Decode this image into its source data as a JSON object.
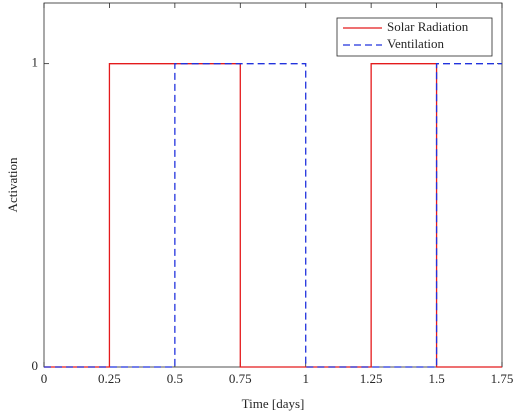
{
  "chart_data": {
    "type": "line",
    "xlabel": "Time [days]",
    "ylabel": "Activation",
    "xlim": [
      0,
      1.75
    ],
    "ylim": [
      0,
      1.2
    ],
    "xticks": [
      0,
      0.25,
      0.5,
      0.75,
      1,
      1.25,
      1.5,
      1.75
    ],
    "yticks": [
      0,
      1
    ],
    "legend": "upper right",
    "series": [
      {
        "name": "Solar Radiation",
        "color": "#e41a1c",
        "dash": "solid",
        "x": [
          0,
          0.25,
          0.25,
          0.75,
          0.75,
          1.25,
          1.25,
          1.5,
          1.5,
          1.75
        ],
        "values": [
          0,
          0,
          1,
          1,
          0,
          0,
          1,
          1,
          0,
          0
        ]
      },
      {
        "name": "Ventilation",
        "color": "#2233dd",
        "dash": "dashed",
        "x": [
          0,
          0.5,
          0.5,
          1,
          1,
          1.5,
          1.5,
          1.75
        ],
        "values": [
          0,
          0,
          1,
          1,
          0,
          0,
          1,
          1
        ]
      }
    ]
  }
}
